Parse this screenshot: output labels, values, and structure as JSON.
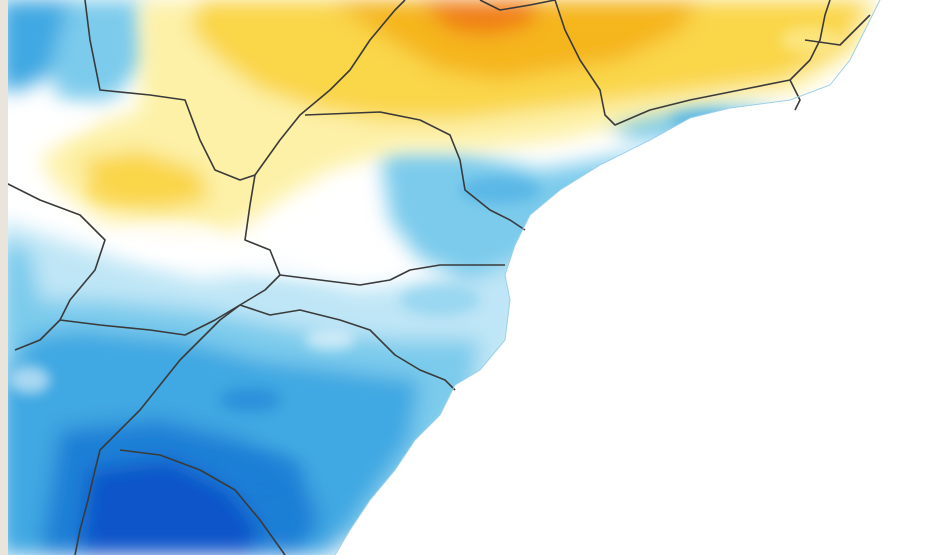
{
  "map": {
    "region": "south-southeast-coast",
    "palette": {
      "strong_warm": "#f07d12",
      "warm": "#f5b51c",
      "mild_warm": "#fad64a",
      "light_warm": "#fdf1a8",
      "neutral": "#ffffff",
      "light_cool": "#bfe6f6",
      "mild_cool": "#7ccbec",
      "cool": "#3fa8e2",
      "strong_cool": "#1c7fd6",
      "very_strong_cool": "#0a55c9",
      "ocean": "#ffffff",
      "border": "#3a3a3a"
    },
    "legend_visible": false,
    "labels_visible": false
  }
}
